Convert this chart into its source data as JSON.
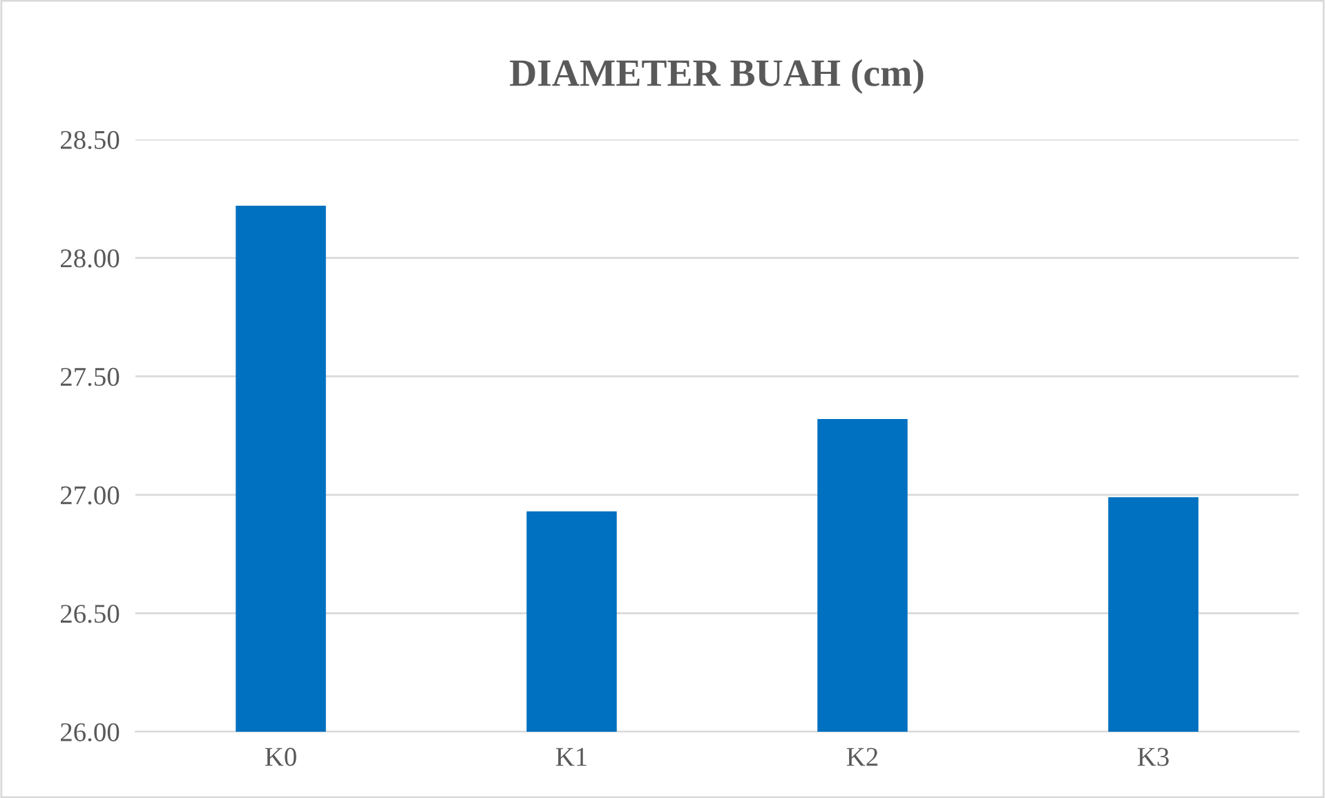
{
  "chart_data": {
    "type": "bar",
    "title": "DIAMETER BUAH (cm)",
    "categories": [
      "K0",
      "K1",
      "K2",
      "K3"
    ],
    "values": [
      28.22,
      26.93,
      27.32,
      26.99
    ],
    "color": "#0070c0",
    "ylim": [
      26.0,
      28.5
    ],
    "yticks": [
      {
        "value": 26.0,
        "label": "26.00"
      },
      {
        "value": 26.5,
        "label": "26.50"
      },
      {
        "value": 27.0,
        "label": "27.00"
      },
      {
        "value": 27.5,
        "label": "27.50"
      },
      {
        "value": 28.0,
        "label": "28.00"
      },
      {
        "value": 28.5,
        "label": "28.50"
      }
    ],
    "grid": "y"
  }
}
